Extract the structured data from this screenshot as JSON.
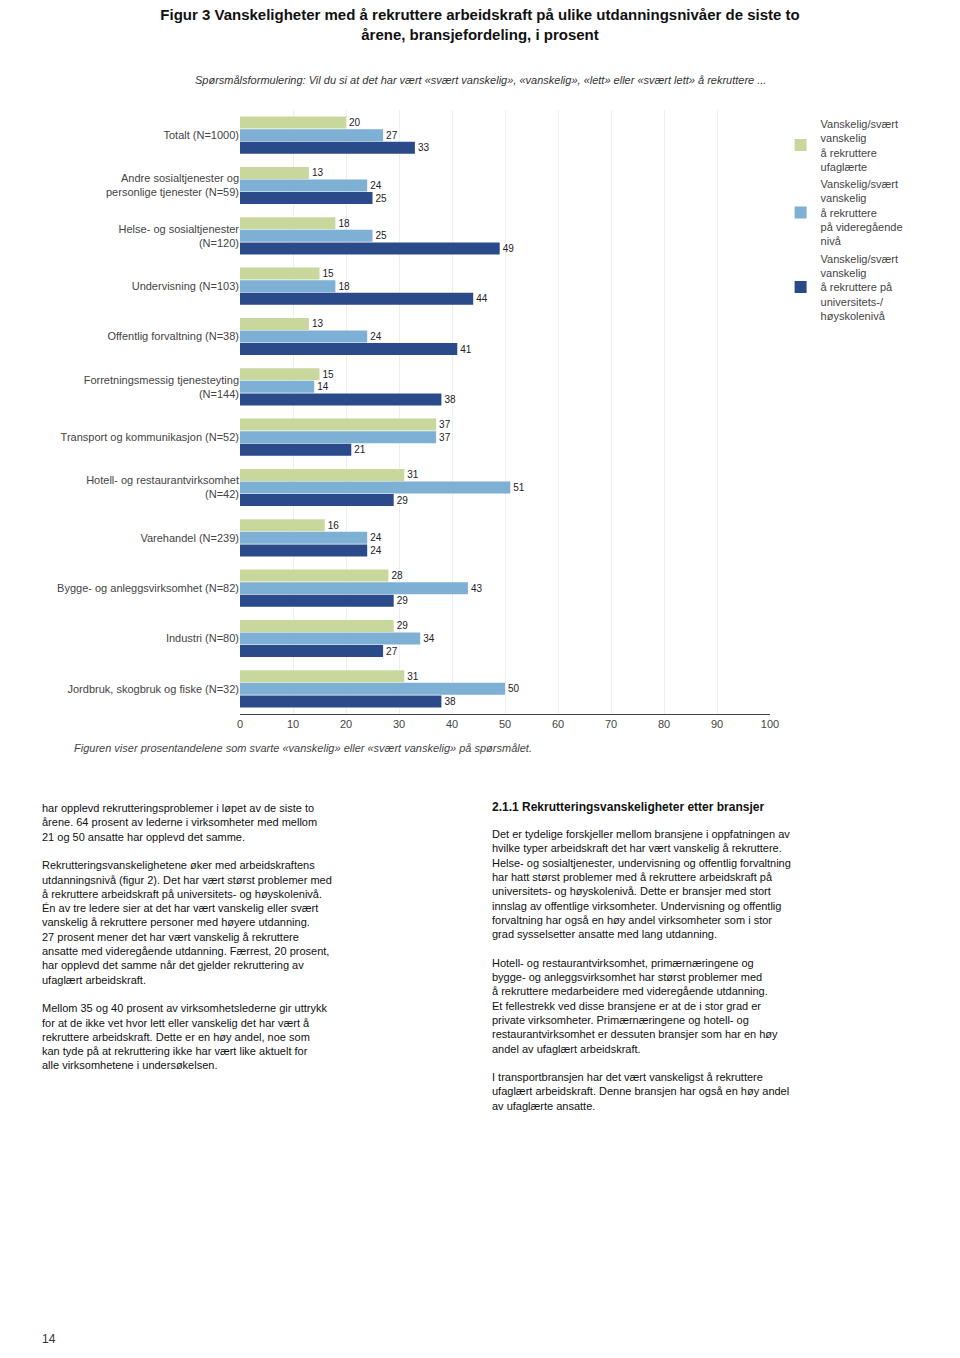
{
  "chart_data": {
    "type": "bar",
    "orientation": "horizontal",
    "title": "Figur 3 Vanskeligheter med å rekruttere arbeidskraft på ulike utdanningsnivåer de siste to\nårene, bransjefordeling, i prosent",
    "subtitle": "Spørsmålsformulering: Vil du si at det har vært «svært vanskelig», «vanskelig», «lett» eller «svært lett» å rekruttere ...",
    "categories": [
      "Totalt (N=1000)",
      "Andre sosialtjenester og\npersonlige tjenester (N=59)",
      "Helse- og sosialtjenester\n(N=120)",
      "Undervisning (N=103)",
      "Offentlig forvaltning (N=38)",
      "Forretningsmessig tjenesteyting\n(N=144)",
      "Transport og kommunikasjon (N=52)",
      "Hotell- og restaurantvirksomhet\n(N=42)",
      "Varehandel (N=239)",
      "Bygge- og anleggsvirksomhet (N=82)",
      "Industri (N=80)",
      "Jordbruk, skogbruk og fiske (N=32)"
    ],
    "series": [
      {
        "name": "Vanskelig/svært\nvanskelig\nå rekruttere\nufaglærte",
        "color": "#c8d89c",
        "values": [
          20,
          13,
          18,
          15,
          13,
          15,
          37,
          31,
          16,
          28,
          29,
          31
        ]
      },
      {
        "name": "Vanskelig/svært\nvanskelig\nå rekruttere\npå videregående\nnivå",
        "color": "#7db0d4",
        "values": [
          27,
          24,
          25,
          18,
          24,
          14,
          37,
          51,
          24,
          43,
          34,
          50
        ]
      },
      {
        "name": "Vanskelig/svært\nvanskelig\nå rekruttere på\nuniversitets-/\nhøyskolenivå",
        "color": "#2a4a8a",
        "values": [
          33,
          25,
          49,
          44,
          41,
          38,
          21,
          29,
          24,
          29,
          27,
          38
        ]
      }
    ],
    "xlim": [
      0,
      100
    ],
    "xticks": [
      0,
      10,
      20,
      30,
      40,
      50,
      60,
      70,
      80,
      90,
      100
    ],
    "grid": true,
    "data_labels": true,
    "legend": "right",
    "annotations": [
      "Figuren viser prosentandelene som svarte «vanskelig» eller «svært vanskelig» på spørsmålet.",
      "har opplevd rekrutteringsproblemer i løpet av de siste to\nårene. 64 prosent av lederne i virksomheter med mellom\n21 og 50 ansatte har opplevd det samme.\n\nRekrutteringsvanskelighetene øker med arbeidskraftens\nutdanningsnivå (figur 2). Det har vært størst problemer med\nå rekruttere arbeidskraft på universitets- og høyskolenivå.\nÉn av tre ledere sier at det har vært vanskelig eller svært\nvanskelig å rekruttere personer med høyere utdanning.\n27 prosent mener det har vært vanskelig å rekruttere\nansatte med videregående utdanning. Færrest, 20 prosent,\nhar opplevd det samme når det gjelder rekruttering av\nufaglært arbeidskraft.\n\nMellom 35 og 40 prosent av virksomhetslederne gir uttrykk\nfor at de ikke vet hvor lett eller vanskelig det har vært å\nrekruttere arbeidskraft. Dette er en høy andel, noe som\nkan tyde på at rekruttering ikke har vært like aktuelt for\nalle virksomhetene i undersøkelsen.",
      "2.1.1 Rekrutteringsvanskeligheter etter bransjer",
      "Det er tydelige forskjeller mellom bransjene i oppfatningen av\nhvilke typer arbeidskraft det har vært vanskelig å rekruttere.\nHelse- og sosialtjenester, undervisning og offentlig forvaltning\nhar hatt størst problemer med å rekruttere arbeidskraft på\nuniversitets- og høyskolenivå. Dette er bransjer med stort\ninnslag av offentlige virksomheter. Undervisning og offentlig\nforvaltning har også en høy andel virksomheter som i stor\ngrad sysselsetter ansatte med lang utdanning.\n\nHotell- og restaurantvirksomhet, primærnæringene og\nbygge- og anleggsvirksomhet har størst problemer med\nå rekruttere medarbeidere med videregående utdanning.\nEt fellestrekk ved disse bransjene er at de i stor grad er\nprivate virksomheter. Primærnæringene og hotell- og\nrestaurantvirksomhet er dessuten bransjer som har en høy\nandel av ufaglært arbeidskraft.\n\nI transportbransjen har det vært vanskeligst å rekruttere\nufaglært arbeidskraft. Denne bransjen har også en høy andel\nav ufaglærte ansatte.",
      "14"
    ]
  }
}
